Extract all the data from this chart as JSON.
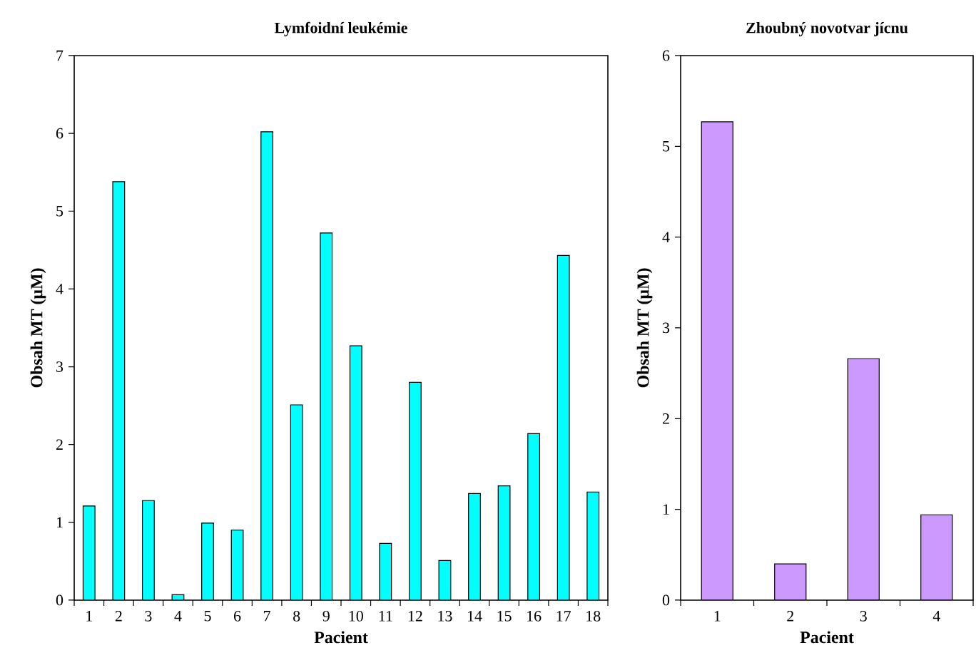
{
  "chart_data": [
    {
      "type": "bar",
      "title": "Lymfoidní leukémie",
      "xlabel": "Pacient",
      "ylabel": "Obsah MT (μM)",
      "categories": [
        "1",
        "2",
        "3",
        "4",
        "5",
        "6",
        "7",
        "8",
        "9",
        "10",
        "11",
        "12",
        "13",
        "14",
        "15",
        "16",
        "17",
        "18"
      ],
      "values": [
        1.21,
        5.38,
        1.28,
        0.07,
        0.99,
        0.9,
        6.02,
        2.51,
        4.72,
        3.27,
        0.73,
        2.8,
        0.51,
        1.37,
        1.47,
        2.14,
        4.43,
        1.39
      ],
      "color": "#00ffff",
      "ylim": [
        0,
        7
      ],
      "yticks": [
        0,
        1,
        2,
        3,
        4,
        5,
        6,
        7
      ]
    },
    {
      "type": "bar",
      "title": "Zhoubný novotvar jícnu",
      "xlabel": "Pacient",
      "ylabel": "Obsah MT (μM)",
      "categories": [
        "1",
        "2",
        "3",
        "4"
      ],
      "values": [
        5.27,
        0.4,
        2.66,
        0.94
      ],
      "color": "#cc99ff",
      "ylim": [
        0,
        6
      ],
      "yticks": [
        0,
        1,
        2,
        3,
        4,
        5,
        6
      ]
    }
  ]
}
